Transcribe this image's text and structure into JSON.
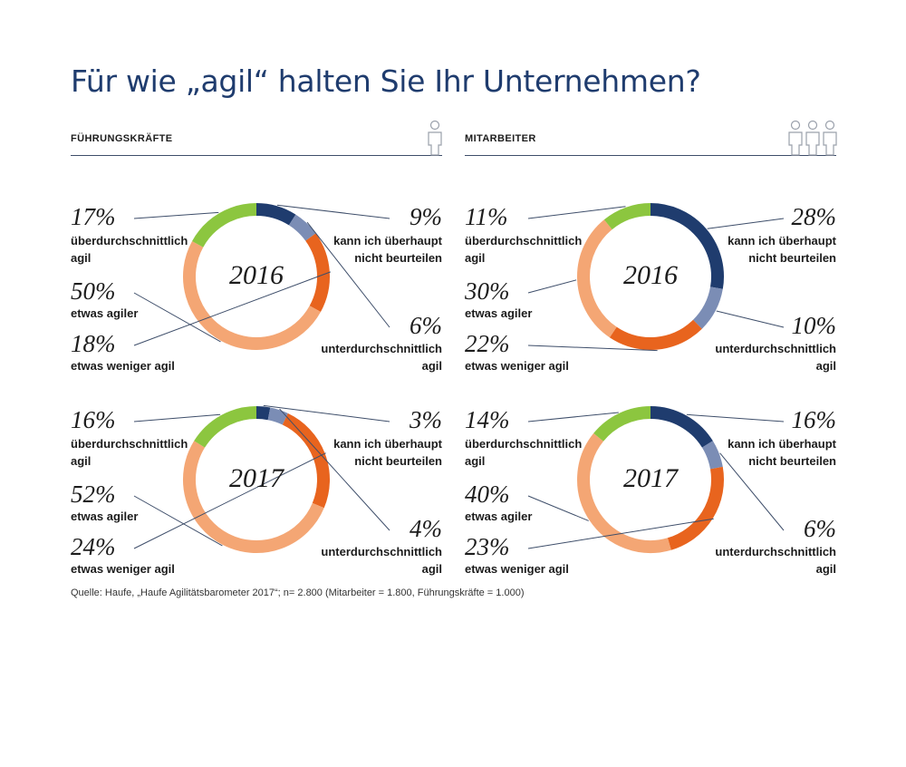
{
  "header": {
    "title": "Für wie „agil“ halten Sie Ihr Unternehmen?",
    "left_panel": "FÜHRUNGSKRÄFTE",
    "right_panel": "MITARBEITER"
  },
  "colors": {
    "ueberdurchschnittlich": "#8cc63f",
    "etwas_agiler": "#f4a674",
    "etwas_weniger_agil": "#e8641e",
    "unterdurchschnittlich": "#7b8db5",
    "kann_nicht_beurteilen": "#1f3c6e",
    "rule": "#3e4e6a"
  },
  "chart_data": [
    {
      "type": "pie",
      "panel": "FÜHRUNGSKRÄFTE",
      "year": "2016",
      "slices": [
        {
          "key": "kann_nicht_beurteilen",
          "value": 9,
          "pct": "9%",
          "label": "kann ich überhaupt\nnicht beurteilen"
        },
        {
          "key": "unterdurchschnittlich",
          "value": 6,
          "pct": "6%",
          "label": "unterdurchschnittlich\nagil"
        },
        {
          "key": "etwas_weniger_agil",
          "value": 18,
          "pct": "18%",
          "label": "etwas weniger agil"
        },
        {
          "key": "etwas_agiler",
          "value": 50,
          "pct": "50%",
          "label": "etwas agiler"
        },
        {
          "key": "ueberdurchschnittlich",
          "value": 17,
          "pct": "17%",
          "label": "überdurchschnittlich\nagil"
        }
      ]
    },
    {
      "type": "pie",
      "panel": "MITARBEITER",
      "year": "2016",
      "slices": [
        {
          "key": "kann_nicht_beurteilen",
          "value": 28,
          "pct": "28%",
          "label": "kann ich überhaupt\nnicht beurteilen"
        },
        {
          "key": "unterdurchschnittlich",
          "value": 10,
          "pct": "10%",
          "label": "unterdurchschnittlich\nagil"
        },
        {
          "key": "etwas_weniger_agil",
          "value": 22,
          "pct": "22%",
          "label": "etwas weniger agil"
        },
        {
          "key": "etwas_agiler",
          "value": 30,
          "pct": "30%",
          "label": "etwas agiler"
        },
        {
          "key": "ueberdurchschnittlich",
          "value": 11,
          "pct": "11%",
          "label": "überdurchschnittlich\nagil"
        }
      ]
    },
    {
      "type": "pie",
      "panel": "FÜHRUNGSKRÄFTE",
      "year": "2017",
      "slices": [
        {
          "key": "kann_nicht_beurteilen",
          "value": 3,
          "pct": "3%",
          "label": "kann ich überhaupt\nnicht beurteilen"
        },
        {
          "key": "unterdurchschnittlich",
          "value": 4,
          "pct": "4%",
          "label": "unterdurchschnittlich\nagil"
        },
        {
          "key": "etwas_weniger_agil",
          "value": 24,
          "pct": "24%",
          "label": "etwas weniger agil"
        },
        {
          "key": "etwas_agiler",
          "value": 52,
          "pct": "52%",
          "label": "etwas agiler"
        },
        {
          "key": "ueberdurchschnittlich",
          "value": 16,
          "pct": "16%",
          "label": "überdurchschnittlich\nagil"
        }
      ]
    },
    {
      "type": "pie",
      "panel": "MITARBEITER",
      "year": "2017",
      "slices": [
        {
          "key": "kann_nicht_beurteilen",
          "value": 16,
          "pct": "16%",
          "label": "kann ich überhaupt\nnicht beurteilen"
        },
        {
          "key": "unterdurchschnittlich",
          "value": 6,
          "pct": "6%",
          "label": "unterdurchschnittlich\nagil"
        },
        {
          "key": "etwas_weniger_agil",
          "value": 23,
          "pct": "23%",
          "label": "etwas weniger agil"
        },
        {
          "key": "etwas_agiler",
          "value": 40,
          "pct": "40%",
          "label": "etwas agiler"
        },
        {
          "key": "ueberdurchschnittlich",
          "value": 14,
          "pct": "14%",
          "label": "überdurchschnittlich\nagil"
        }
      ]
    }
  ],
  "footer": {
    "source": "Quelle: Haufe, „Haufe Agilitätsbarometer 2017“; n= 2.800 (Mitarbeiter = 1.800, Führungskräfte = 1.000)"
  }
}
